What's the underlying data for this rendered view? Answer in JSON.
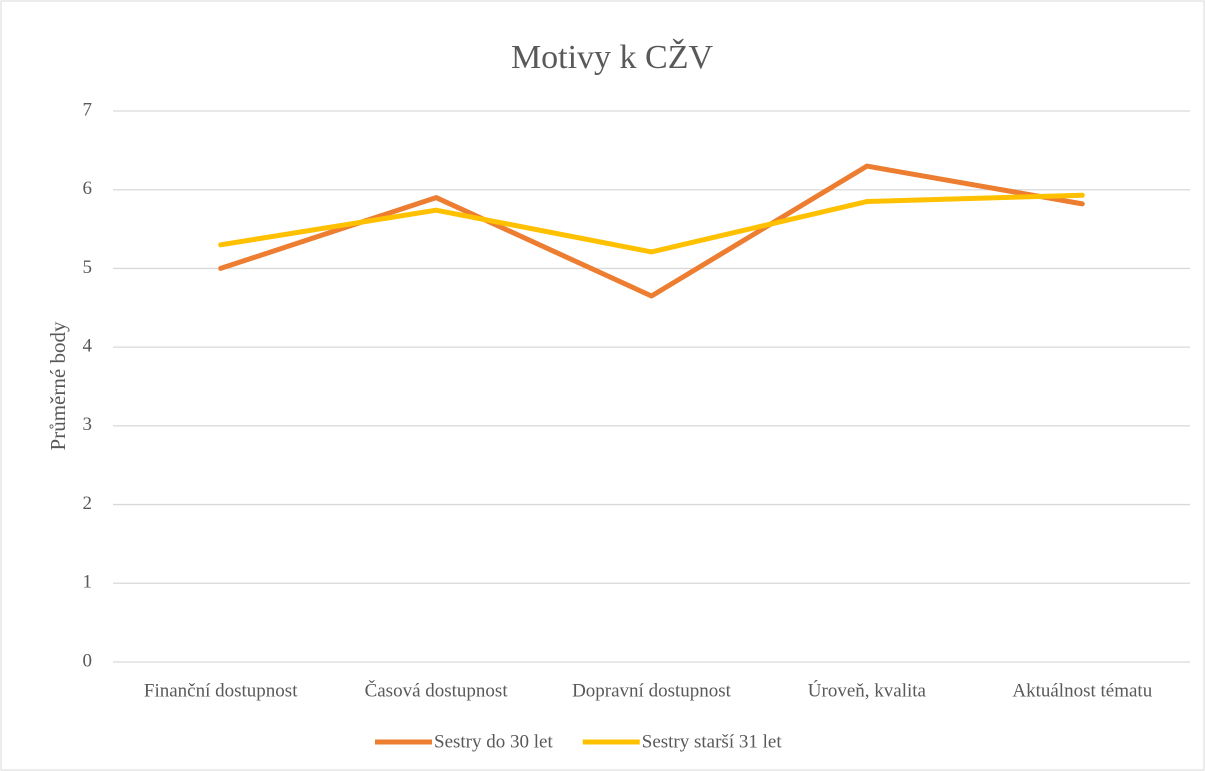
{
  "chart_data": {
    "type": "line",
    "title": "Motivy k CŽV",
    "y_label": "Průměrné body",
    "categories": [
      "Finanční dostupnost",
      "Časová dostupnost",
      "Dopravní dostupnost",
      "Úroveň, kvalita",
      "Aktuálnost tématu"
    ],
    "series": [
      {
        "name": "Sestry do 30 let",
        "color": "#ed7d31",
        "values": [
          5.0,
          5.9,
          4.65,
          6.3,
          5.82
        ]
      },
      {
        "name": "Sestry starší 31 let",
        "color": "#ffc000",
        "values": [
          5.3,
          5.74,
          5.21,
          5.85,
          5.93
        ]
      }
    ],
    "ylim": [
      0,
      7
    ],
    "yticks": [
      0,
      1,
      2,
      3,
      4,
      5,
      6,
      7
    ],
    "grid": true
  }
}
